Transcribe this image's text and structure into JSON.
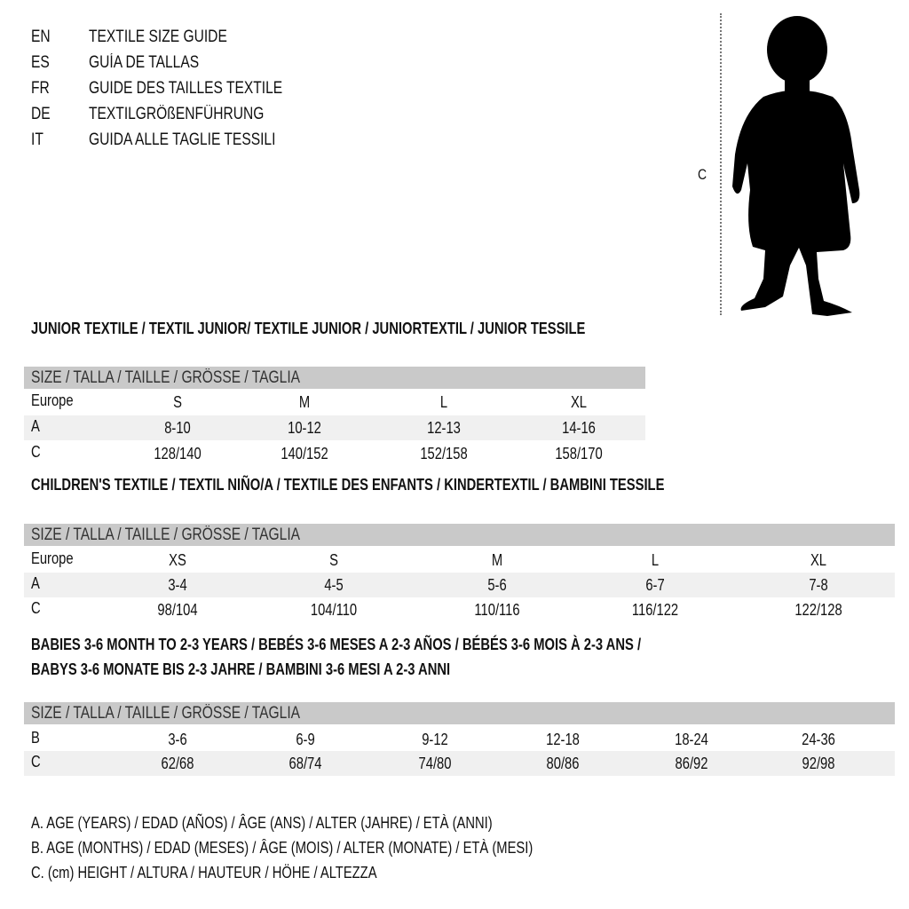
{
  "languages": [
    {
      "code": "EN",
      "label": "TEXTILE SIZE GUIDE"
    },
    {
      "code": "ES",
      "label": "GUÍA DE TALLAS"
    },
    {
      "code": "FR",
      "label": "GUIDE DES TAILLES TEXTILE"
    },
    {
      "code": "DE",
      "label": "TEXTILGRÖßENFÜHRUNG"
    },
    {
      "code": "IT",
      "label": "GUIDA ALLE TAGLIE TESSILI"
    }
  ],
  "figure": {
    "measure_label": "C",
    "icon": "child-silhouette-icon"
  },
  "junior": {
    "title": "JUNIOR TEXTILE / TEXTIL JUNIOR/ TEXTILE JUNIOR / JUNIORTEXTIL / JUNIOR TESSILE",
    "header": "SIZE / TALLA / TAILLE / GRÖSSE / TAGLIA",
    "rows": [
      {
        "label": "Europe",
        "values": [
          "S",
          "M",
          "L",
          "XL"
        ]
      },
      {
        "label": "A",
        "values": [
          "8-10",
          "10-12",
          "12-13",
          "14-16"
        ]
      },
      {
        "label": "C",
        "values": [
          "128/140",
          "140/152",
          "152/158",
          "158/170"
        ]
      }
    ]
  },
  "children": {
    "title": "CHILDREN'S TEXTILE / TEXTIL NIÑO/A / TEXTILE DES ENFANTS / KINDERTEXTIL / BAMBINI TESSILE",
    "header": "SIZE / TALLA / TAILLE / GRÖSSE / TAGLIA",
    "rows": [
      {
        "label": "Europe",
        "values": [
          "XS",
          "S",
          "M",
          "L",
          "XL"
        ]
      },
      {
        "label": "A",
        "values": [
          "3-4",
          "4-5",
          "5-6",
          "6-7",
          "7-8"
        ]
      },
      {
        "label": "C",
        "values": [
          "98/104",
          "104/110",
          "110/116",
          "116/122",
          "122/128"
        ]
      }
    ]
  },
  "babies": {
    "title_line1": "BABIES 3-6 MONTH TO 2-3 YEARS / BEBÉS 3-6 MESES A 2-3 AÑOS / BÉBÉS 3-6 MOIS À 2-3 ANS /",
    "title_line2": "BABYS 3-6 MONATE BIS 2-3 JAHRE / BAMBINI 3-6 MESI A 2-3 ANNI",
    "header": "SIZE / TALLA / TAILLE / GRÖSSE / TAGLIA",
    "rows": [
      {
        "label": "B",
        "values": [
          "3-6",
          "6-9",
          "9-12",
          "12-18",
          "18-24",
          "24-36"
        ]
      },
      {
        "label": "C",
        "values": [
          "62/68",
          "68/74",
          "74/80",
          "80/86",
          "86/92",
          "92/98"
        ]
      }
    ]
  },
  "legend": [
    "A. AGE (YEARS) / EDAD (AÑOS) / ÂGE (ANS) / ALTER (JAHRE) / ETÀ (ANNI)",
    "B. AGE (MONTHS) / EDAD (MESES) / ÂGE (MOIS) / ALTER (MONATE) / ETÀ (MESI)",
    "C. (cm) HEIGHT / ALTURA / HAUTEUR / HÖHE / ALTEZZA"
  ]
}
